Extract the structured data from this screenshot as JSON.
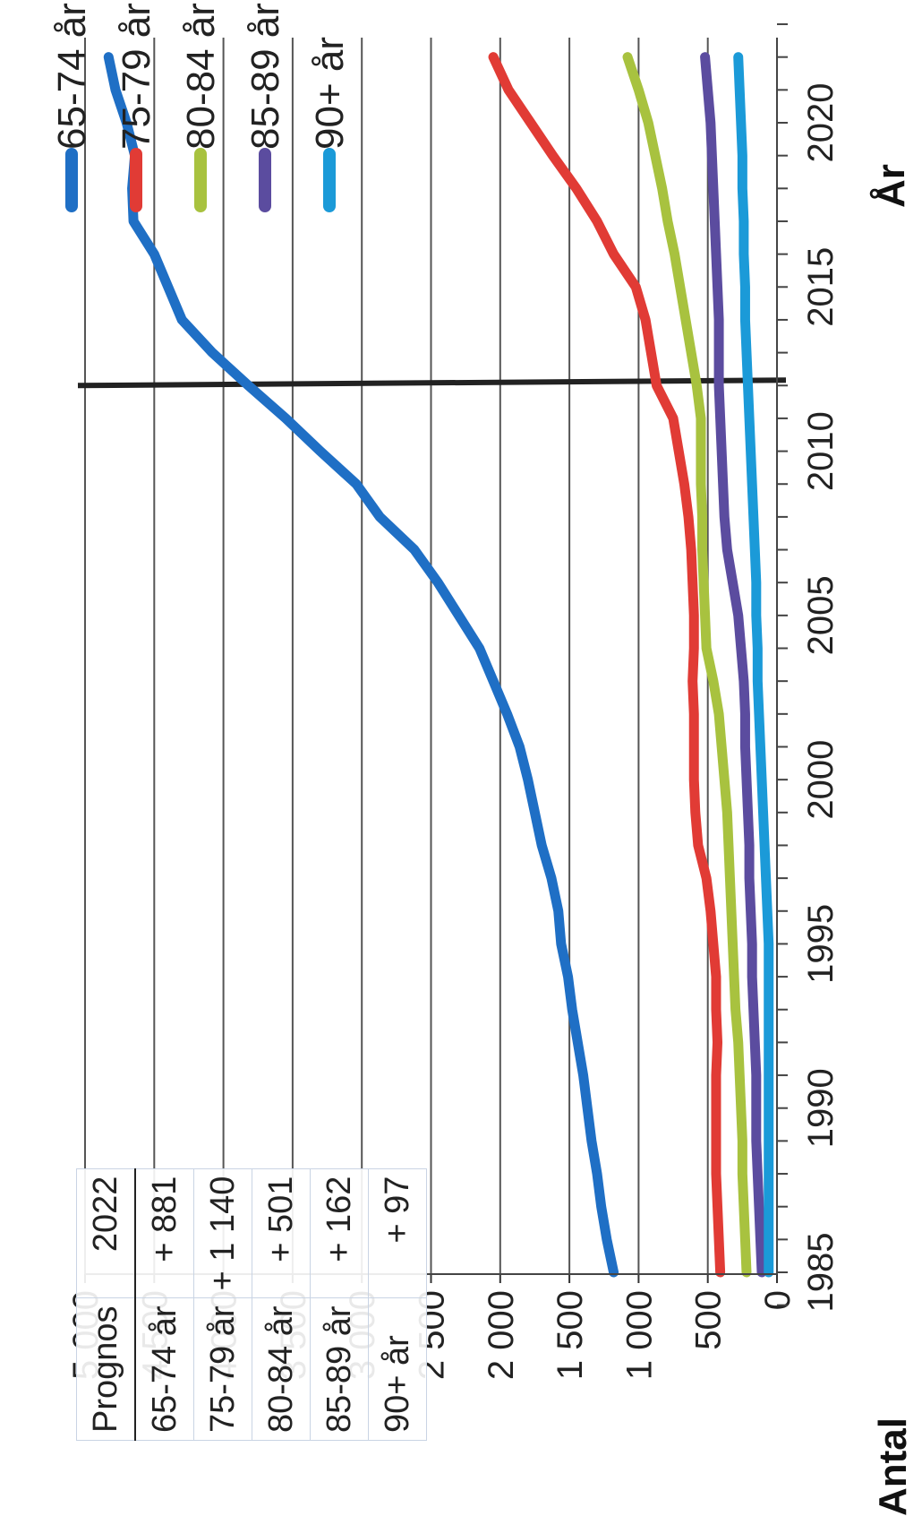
{
  "chart_data": {
    "type": "line",
    "ylabel": "Antal",
    "xlabel": "År",
    "ylim": [
      0,
      5000
    ],
    "xlim": [
      1984,
      2023
    ],
    "yticks": [
      "0",
      "500",
      "1 000",
      "1 500",
      "2 000",
      "2 500",
      "3 000",
      "3 500",
      "4 000",
      "4 500",
      "5 000"
    ],
    "xticks": [
      "1985",
      "1990",
      "1995",
      "2000",
      "2005",
      "2010",
      "2015",
      "2020"
    ],
    "marker_year": 2012,
    "grid": "horizontal",
    "legend_position": "top",
    "series": [
      {
        "name": "65-74 år",
        "color": "#1f6fc5",
        "x": [
          1985,
          1986,
          1987,
          1988,
          1989,
          1990,
          1991,
          1992,
          1993,
          1994,
          1995,
          1996,
          1997,
          1998,
          1999,
          2000,
          2001,
          2002,
          2003,
          2004,
          2005,
          2006,
          2007,
          2008,
          2009,
          2010,
          2011,
          2012,
          2013,
          2014,
          2015,
          2016,
          2017,
          2018,
          2019,
          2020,
          2021,
          2022
        ],
        "y": [
          1180,
          1230,
          1270,
          1300,
          1340,
          1370,
          1400,
          1440,
          1480,
          1510,
          1560,
          1580,
          1630,
          1700,
          1750,
          1800,
          1860,
          1950,
          2050,
          2150,
          2300,
          2450,
          2620,
          2870,
          3040,
          3300,
          3550,
          3820,
          4080,
          4300,
          4400,
          4500,
          4650,
          4660,
          4640,
          4700,
          4780,
          4830
        ]
      },
      {
        "name": "75-79 år",
        "color": "#e13b35",
        "x": [
          1985,
          1986,
          1987,
          1988,
          1989,
          1990,
          1991,
          1992,
          1993,
          1994,
          1995,
          1996,
          1997,
          1998,
          1999,
          2000,
          2001,
          2002,
          2003,
          2004,
          2005,
          2006,
          2007,
          2008,
          2009,
          2010,
          2011,
          2012,
          2013,
          2014,
          2015,
          2016,
          2017,
          2018,
          2019,
          2020,
          2021,
          2022
        ],
        "y": [
          410,
          420,
          430,
          440,
          440,
          440,
          440,
          430,
          440,
          440,
          460,
          480,
          510,
          570,
          590,
          600,
          600,
          600,
          610,
          600,
          600,
          610,
          620,
          640,
          670,
          710,
          750,
          870,
          910,
          950,
          1020,
          1180,
          1300,
          1450,
          1620,
          1780,
          1940,
          2050
        ]
      },
      {
        "name": "80-84 år",
        "color": "#a8c23f",
        "x": [
          1985,
          1986,
          1987,
          1988,
          1989,
          1990,
          1991,
          1992,
          1993,
          1994,
          1995,
          1996,
          1997,
          1998,
          1999,
          2000,
          2001,
          2002,
          2003,
          2004,
          2005,
          2006,
          2007,
          2008,
          2009,
          2010,
          2011,
          2012,
          2013,
          2014,
          2015,
          2016,
          2017,
          2018,
          2019,
          2020,
          2021,
          2022
        ],
        "y": [
          220,
          230,
          240,
          250,
          250,
          260,
          270,
          280,
          300,
          310,
          320,
          330,
          340,
          350,
          360,
          380,
          400,
          420,
          460,
          510,
          520,
          530,
          540,
          540,
          550,
          550,
          550,
          580,
          620,
          660,
          700,
          740,
          790,
          830,
          880,
          930,
          1000,
          1080
        ]
      },
      {
        "name": "85-89 år",
        "color": "#5b4c9f",
        "x": [
          1985,
          1986,
          1987,
          1988,
          1989,
          1990,
          1991,
          1992,
          1993,
          1994,
          1995,
          1996,
          1997,
          1998,
          1999,
          2000,
          2001,
          2002,
          2003,
          2004,
          2005,
          2006,
          2007,
          2008,
          2009,
          2010,
          2011,
          2012,
          2013,
          2014,
          2015,
          2016,
          2017,
          2018,
          2019,
          2020,
          2021,
          2022
        ],
        "y": [
          110,
          120,
          130,
          140,
          150,
          150,
          150,
          160,
          170,
          180,
          180,
          190,
          200,
          200,
          210,
          220,
          230,
          230,
          240,
          260,
          280,
          320,
          360,
          380,
          390,
          400,
          410,
          420,
          420,
          420,
          430,
          440,
          450,
          460,
          470,
          480,
          500,
          520
        ]
      },
      {
        "name": "90+ år",
        "color": "#1b9ad8",
        "x": [
          1985,
          1986,
          1987,
          1988,
          1989,
          1990,
          1991,
          1992,
          1993,
          1994,
          1995,
          1996,
          1997,
          1998,
          1999,
          2000,
          2001,
          2002,
          2003,
          2004,
          2005,
          2006,
          2007,
          2008,
          2009,
          2010,
          2011,
          2012,
          2013,
          2014,
          2015,
          2016,
          2017,
          2018,
          2019,
          2020,
          2021,
          2022
        ],
        "y": [
          60,
          60,
          60,
          60,
          60,
          60,
          60,
          60,
          60,
          60,
          60,
          70,
          80,
          90,
          100,
          110,
          120,
          130,
          140,
          140,
          150,
          150,
          160,
          170,
          180,
          190,
          200,
          210,
          220,
          230,
          230,
          240,
          240,
          250,
          250,
          260,
          270,
          280
        ]
      }
    ]
  },
  "prognos_table": {
    "header": {
      "label": "Prognos",
      "year": "2022"
    },
    "rows": [
      {
        "label": "65-74 år",
        "value": "+ 881"
      },
      {
        "label": "75-79 år",
        "value": "+ 1 140"
      },
      {
        "label": "80-84 år",
        "value": "+ 501"
      },
      {
        "label": "85-89 år",
        "value": "+ 162"
      },
      {
        "label": "90+ år",
        "value": "+ 97"
      }
    ]
  }
}
